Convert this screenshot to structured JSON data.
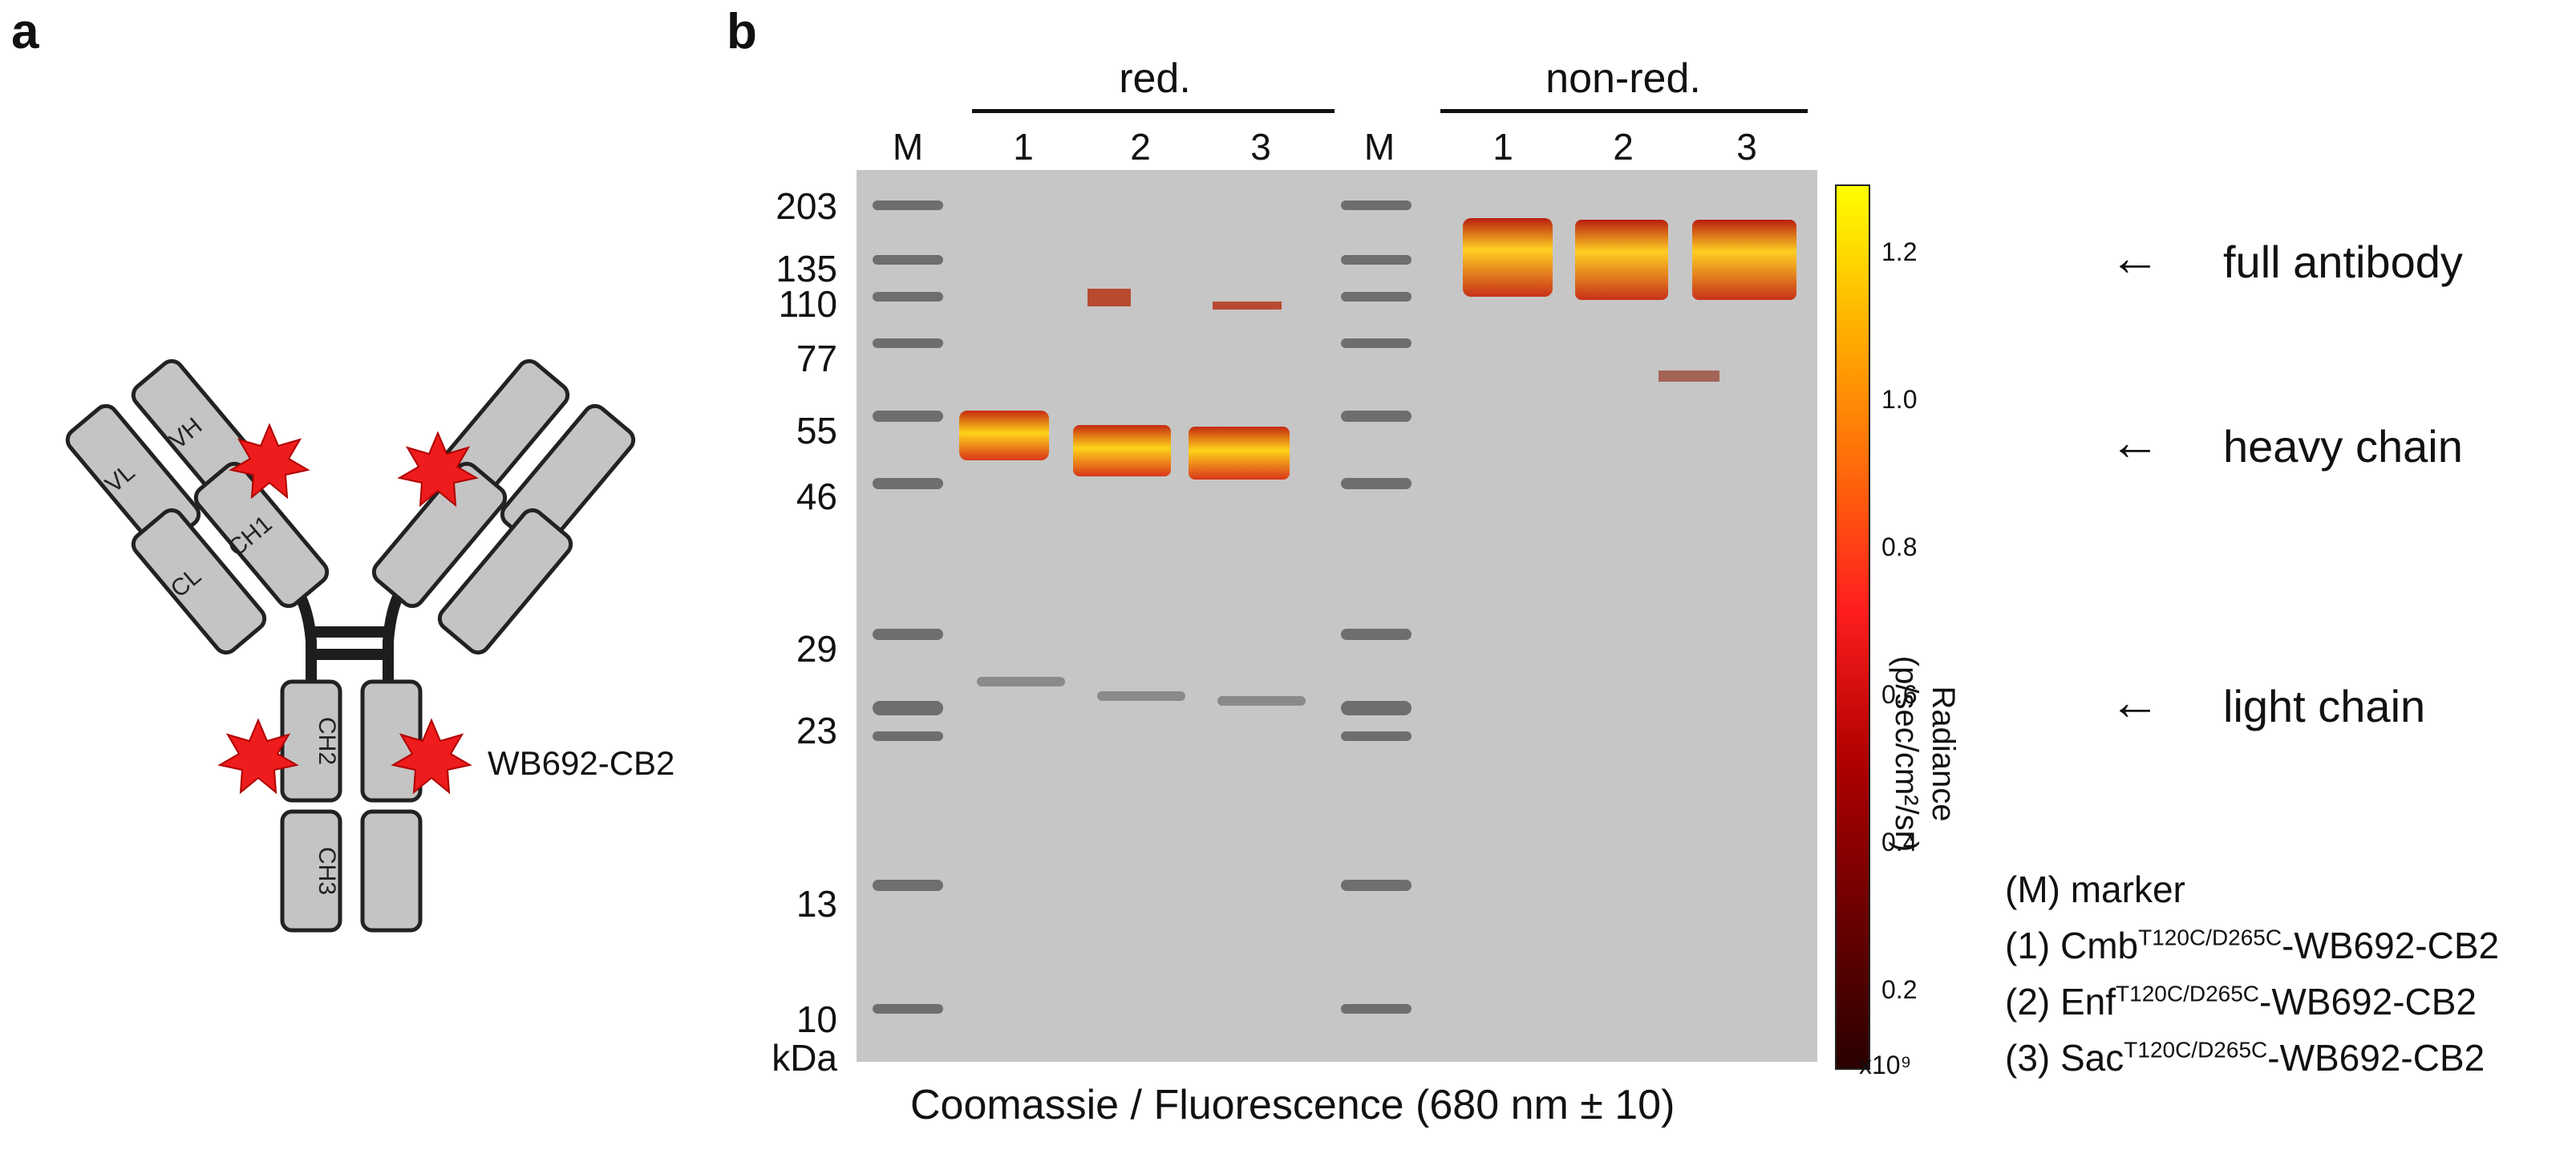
{
  "panel_a": {
    "letter": "a",
    "domains": {
      "vh": "VH",
      "vl": "VL",
      "ch1": "CH1",
      "cl": "CL",
      "ch2": "CH2",
      "ch3": "CH3"
    },
    "conjugate_label": "WB692-CB2",
    "colors": {
      "domain_fill": "#c4c4c4",
      "domain_stroke": "#222222",
      "star": "#ee1c1c"
    }
  },
  "panel_b": {
    "letter": "b",
    "groups": {
      "reduced": "red.",
      "non_reduced": "non-red."
    },
    "lanes": [
      "M",
      "1",
      "2",
      "3",
      "M",
      "1",
      "2",
      "3"
    ],
    "mw_markers": [
      "203",
      "135",
      "110",
      "77",
      "55",
      "46",
      "29",
      "23",
      "13",
      "10"
    ],
    "mw_unit": "kDa",
    "caption": "Coomassie / Fluorescence (680 nm ± 10)",
    "colorbar": {
      "title_line1": "Radiance",
      "title_line2": "(p/sec/cm²/sr)",
      "ticks": [
        "1.2",
        "1.0",
        "0.8",
        "0.6",
        "0.4",
        "0.2"
      ],
      "multiplier": "x10⁹",
      "colors": [
        "#2a0000",
        "#b00000",
        "#ff1e1e",
        "#ff6a0a",
        "#ffb000",
        "#ffff00"
      ]
    },
    "band_annotations": {
      "full": "full antibody",
      "heavy": "heavy chain",
      "light": "light chain",
      "arrow": "←"
    },
    "legend": {
      "m": "(M) marker",
      "l1_pre": "(1) Cmb",
      "l1_sup": "T120C/D265C",
      "l1_post": "-WB692-CB2",
      "l2_pre": "(2) Enf",
      "l2_sup": "T120C/D265C",
      "l2_post": "-WB692-CB2",
      "l3_pre": "(3) Sac",
      "l3_sup": "T120C/D265C",
      "l3_post": "-WB692-CB2"
    }
  }
}
